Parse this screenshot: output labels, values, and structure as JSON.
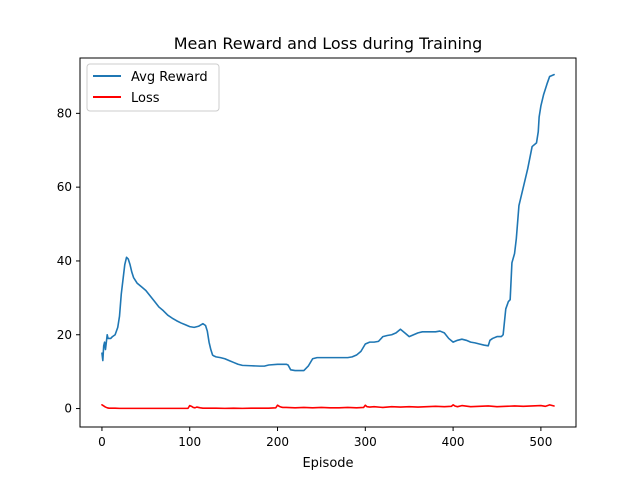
{
  "chart_data": {
    "type": "line",
    "title": "Mean Reward and Loss during Training",
    "xlabel": "Episode",
    "ylabel": "",
    "xlim": [
      -25,
      540
    ],
    "ylim": [
      -5,
      95
    ],
    "xticks": [
      0,
      100,
      200,
      300,
      400,
      500
    ],
    "yticks": [
      0,
      20,
      40,
      60,
      80
    ],
    "grid": false,
    "legend": "top-left",
    "series": [
      {
        "name": "Avg Reward",
        "color": "#1f77b4",
        "x": [
          0,
          1,
          2,
          3,
          4,
          5,
          6,
          7,
          8,
          9,
          10,
          12,
          15,
          18,
          20,
          22,
          24,
          26,
          28,
          30,
          32,
          34,
          36,
          40,
          45,
          50,
          55,
          60,
          65,
          70,
          75,
          80,
          85,
          90,
          95,
          100,
          105,
          110,
          115,
          118,
          120,
          122,
          124,
          126,
          128,
          130,
          135,
          140,
          145,
          150,
          155,
          160,
          170,
          180,
          185,
          190,
          200,
          205,
          210,
          212,
          215,
          220,
          225,
          230,
          235,
          240,
          245,
          250,
          260,
          270,
          280,
          285,
          290,
          295,
          300,
          305,
          310,
          315,
          320,
          325,
          330,
          335,
          340,
          345,
          350,
          355,
          360,
          365,
          370,
          375,
          380,
          385,
          390,
          395,
          400,
          405,
          410,
          415,
          420,
          425,
          430,
          435,
          440,
          442,
          445,
          450,
          455,
          457,
          460,
          463,
          465,
          467,
          470,
          472,
          475,
          480,
          485,
          490,
          495,
          497,
          498,
          500,
          503,
          507,
          510,
          515
        ],
        "y": [
          15,
          13,
          17,
          18,
          16,
          18,
          20,
          19,
          19,
          19,
          19,
          19.5,
          20,
          22,
          25,
          31,
          35,
          39,
          41,
          40.5,
          39,
          37,
          35.5,
          34,
          33,
          32,
          30.5,
          29,
          27.5,
          26.5,
          25.3,
          24.5,
          23.8,
          23.2,
          22.7,
          22.2,
          22,
          22.3,
          23,
          22.5,
          21,
          18,
          16,
          14.5,
          14.2,
          14,
          13.8,
          13.5,
          13,
          12.5,
          12,
          11.7,
          11.6,
          11.5,
          11.5,
          11.8,
          12,
          12,
          12,
          11.8,
          10.5,
          10.3,
          10.3,
          10.3,
          11.5,
          13.5,
          13.8,
          13.8,
          13.8,
          13.8,
          13.8,
          14,
          14.5,
          15.5,
          17.5,
          18,
          18,
          18.2,
          19.5,
          19.8,
          20,
          20.5,
          21.5,
          20.5,
          19.5,
          20,
          20.5,
          20.8,
          20.8,
          20.8,
          20.8,
          21,
          20.5,
          19,
          18,
          18.5,
          18.8,
          18.5,
          18,
          17.8,
          17.5,
          17.2,
          17,
          18.5,
          19,
          19.5,
          19.5,
          20,
          27,
          29,
          29.5,
          39.5,
          42,
          46,
          55,
          60,
          65,
          71,
          72,
          75,
          79,
          82,
          85,
          88,
          90,
          90.5
        ]
      },
      {
        "name": "Loss",
        "color": "#ff0000",
        "x": [
          0,
          2,
          4,
          6,
          8,
          10,
          15,
          20,
          30,
          40,
          50,
          60,
          70,
          80,
          90,
          98,
          100,
          102,
          104,
          106,
          108,
          110,
          112,
          115,
          120,
          130,
          140,
          150,
          160,
          170,
          180,
          190,
          198,
          200,
          202,
          204,
          206,
          210,
          220,
          230,
          240,
          250,
          260,
          270,
          280,
          290,
          298,
          300,
          302,
          305,
          310,
          320,
          330,
          340,
          350,
          360,
          370,
          380,
          390,
          398,
          400,
          402,
          405,
          410,
          420,
          430,
          440,
          450,
          460,
          470,
          480,
          490,
          500,
          505,
          510,
          515
        ],
        "y": [
          1.0,
          0.7,
          0.4,
          0.2,
          0.1,
          0.1,
          0.1,
          0.05,
          0.05,
          0.05,
          0.05,
          0.05,
          0.05,
          0.05,
          0.05,
          0.05,
          0.8,
          0.6,
          0.3,
          0.2,
          0.4,
          0.3,
          0.2,
          0.1,
          0.1,
          0.1,
          0.05,
          0.1,
          0.05,
          0.1,
          0.1,
          0.1,
          0.2,
          0.9,
          0.6,
          0.4,
          0.3,
          0.3,
          0.2,
          0.3,
          0.2,
          0.3,
          0.2,
          0.2,
          0.3,
          0.2,
          0.3,
          0.9,
          0.5,
          0.4,
          0.5,
          0.3,
          0.5,
          0.4,
          0.5,
          0.4,
          0.5,
          0.6,
          0.5,
          0.6,
          1.0,
          0.7,
          0.5,
          0.8,
          0.5,
          0.6,
          0.7,
          0.5,
          0.6,
          0.7,
          0.6,
          0.7,
          0.8,
          0.6,
          1.0,
          0.7
        ]
      }
    ]
  }
}
